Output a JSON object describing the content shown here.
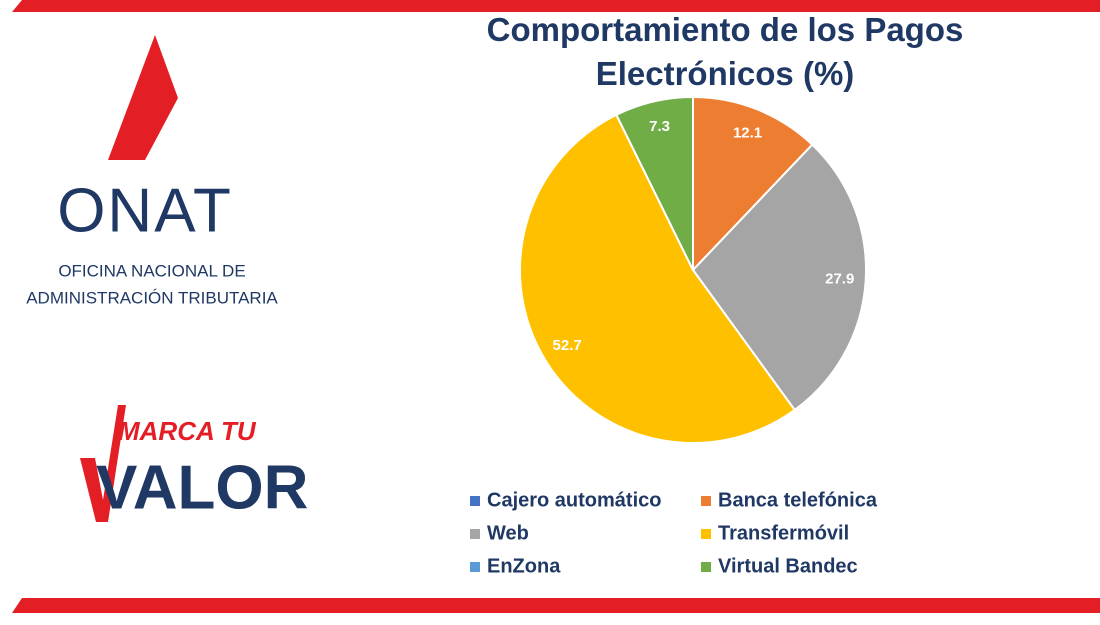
{
  "chart_data": {
    "type": "pie",
    "title": "Comportamiento de los Pagos Electrónicos (%)",
    "categories": [
      "Cajero automático",
      "Banca telefónica",
      "Web",
      "Transfermóvil",
      "EnZona",
      "Virtual Bandec"
    ],
    "values": [
      0,
      12.1,
      27.9,
      52.7,
      0,
      7.3
    ],
    "colors": [
      "#4472c4",
      "#ed7d31",
      "#a5a5a5",
      "#ffc000",
      "#5b9bd5",
      "#70ad47"
    ],
    "legend": "bottom"
  },
  "branding": {
    "onat": "ONAT",
    "onat_line1": "OFICINA NACIONAL DE",
    "onat_line2": "ADMINISTRACIÓN TRIBUTARIA",
    "slogan_top": "MARCA TU",
    "slogan_bottom": "VALOR"
  }
}
